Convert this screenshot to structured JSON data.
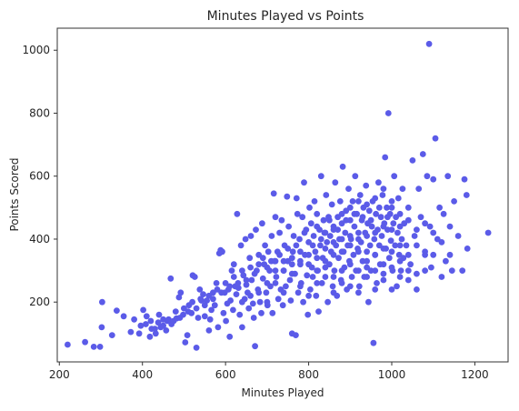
{
  "chart_data": {
    "type": "scatter",
    "title": "Minutes Played vs Points",
    "xlabel": "Minutes Played",
    "ylabel": "Points Scored",
    "xlim": [
      195,
      1280
    ],
    "ylim": [
      10,
      1070
    ],
    "xticks": [
      200,
      400,
      600,
      800,
      1000,
      1200
    ],
    "yticks": [
      200,
      400,
      600,
      800,
      1000
    ],
    "grid": false,
    "point_color": "#5b5be8",
    "points": [
      [
        220,
        65
      ],
      [
        262,
        73
      ],
      [
        283,
        58
      ],
      [
        298,
        58
      ],
      [
        302,
        120
      ],
      [
        303,
        200
      ],
      [
        327,
        95
      ],
      [
        338,
        173
      ],
      [
        355,
        155
      ],
      [
        372,
        105
      ],
      [
        380,
        145
      ],
      [
        392,
        100
      ],
      [
        396,
        125
      ],
      [
        402,
        175
      ],
      [
        408,
        130
      ],
      [
        410,
        155
      ],
      [
        418,
        90
      ],
      [
        422,
        115
      ],
      [
        432,
        100
      ],
      [
        438,
        135
      ],
      [
        444,
        120
      ],
      [
        450,
        145
      ],
      [
        457,
        110
      ],
      [
        463,
        145
      ],
      [
        468,
        275
      ],
      [
        475,
        140
      ],
      [
        482,
        148
      ],
      [
        488,
        215
      ],
      [
        492,
        230
      ],
      [
        498,
        160
      ],
      [
        503,
        72
      ],
      [
        508,
        95
      ],
      [
        512,
        190
      ],
      [
        518,
        165
      ],
      [
        521,
        285
      ],
      [
        526,
        280
      ],
      [
        530,
        55
      ],
      [
        534,
        150
      ],
      [
        538,
        240
      ],
      [
        542,
        205
      ],
      [
        546,
        225
      ],
      [
        550,
        155
      ],
      [
        555,
        205
      ],
      [
        560,
        110
      ],
      [
        563,
        145
      ],
      [
        566,
        175
      ],
      [
        570,
        230
      ],
      [
        574,
        190
      ],
      [
        578,
        260
      ],
      [
        582,
        120
      ],
      [
        585,
        355
      ],
      [
        588,
        365
      ],
      [
        592,
        360
      ],
      [
        595,
        165
      ],
      [
        598,
        230
      ],
      [
        601,
        140
      ],
      [
        604,
        195
      ],
      [
        607,
        240
      ],
      [
        610,
        90
      ],
      [
        612,
        205
      ],
      [
        615,
        300
      ],
      [
        618,
        175
      ],
      [
        620,
        320
      ],
      [
        623,
        250
      ],
      [
        626,
        225
      ],
      [
        628,
        480
      ],
      [
        631,
        245
      ],
      [
        634,
        160
      ],
      [
        637,
        380
      ],
      [
        640,
        120
      ],
      [
        643,
        285
      ],
      [
        646,
        210
      ],
      [
        648,
        400
      ],
      [
        650,
        255
      ],
      [
        653,
        230
      ],
      [
        656,
        180
      ],
      [
        658,
        340
      ],
      [
        661,
        410
      ],
      [
        663,
        270
      ],
      [
        666,
        195
      ],
      [
        668,
        150
      ],
      [
        671,
        60
      ],
      [
        673,
        430
      ],
      [
        675,
        300
      ],
      [
        678,
        240
      ],
      [
        680,
        350
      ],
      [
        683,
        200
      ],
      [
        686,
        165
      ],
      [
        688,
        450
      ],
      [
        690,
        275
      ],
      [
        693,
        320
      ],
      [
        695,
        380
      ],
      [
        698,
        230
      ],
      [
        701,
        190
      ],
      [
        703,
        360
      ],
      [
        706,
        300
      ],
      [
        708,
        250
      ],
      [
        711,
        410
      ],
      [
        713,
        165
      ],
      [
        716,
        545
      ],
      [
        718,
        330
      ],
      [
        720,
        470
      ],
      [
        722,
        280
      ],
      [
        725,
        360
      ],
      [
        727,
        210
      ],
      [
        730,
        420
      ],
      [
        733,
        240
      ],
      [
        735,
        460
      ],
      [
        738,
        190
      ],
      [
        740,
        300
      ],
      [
        742,
        380
      ],
      [
        745,
        250
      ],
      [
        748,
        535
      ],
      [
        750,
        330
      ],
      [
        752,
        440
      ],
      [
        755,
        270
      ],
      [
        757,
        205
      ],
      [
        760,
        100
      ],
      [
        762,
        360
      ],
      [
        764,
        410
      ],
      [
        767,
        290
      ],
      [
        769,
        95
      ],
      [
        771,
        530
      ],
      [
        773,
        480
      ],
      [
        775,
        230
      ],
      [
        778,
        400
      ],
      [
        780,
        320
      ],
      [
        782,
        260
      ],
      [
        785,
        470
      ],
      [
        787,
        200
      ],
      [
        789,
        580
      ],
      [
        791,
        350
      ],
      [
        794,
        430
      ],
      [
        796,
        285
      ],
      [
        798,
        160
      ],
      [
        800,
        390
      ],
      [
        802,
        500
      ],
      [
        804,
        240
      ],
      [
        806,
        450
      ],
      [
        808,
        310
      ],
      [
        810,
        280
      ],
      [
        812,
        410
      ],
      [
        814,
        520
      ],
      [
        816,
        360
      ],
      [
        818,
        220
      ],
      [
        820,
        480
      ],
      [
        822,
        300
      ],
      [
        824,
        170
      ],
      [
        826,
        430
      ],
      [
        828,
        380
      ],
      [
        830,
        600
      ],
      [
        832,
        260
      ],
      [
        834,
        340
      ],
      [
        836,
        460
      ],
      [
        838,
        420
      ],
      [
        840,
        280
      ],
      [
        842,
        540
      ],
      [
        844,
        390
      ],
      [
        846,
        200
      ],
      [
        848,
        470
      ],
      [
        850,
        320
      ],
      [
        852,
        410
      ],
      [
        854,
        360
      ],
      [
        856,
        510
      ],
      [
        858,
        250
      ],
      [
        860,
        440
      ],
      [
        862,
        300
      ],
      [
        864,
        580
      ],
      [
        866,
        380
      ],
      [
        868,
        220
      ],
      [
        870,
        470
      ],
      [
        872,
        340
      ],
      [
        874,
        400
      ],
      [
        876,
        520
      ],
      [
        878,
        270
      ],
      [
        880,
        450
      ],
      [
        882,
        630
      ],
      [
        884,
        360
      ],
      [
        886,
        310
      ],
      [
        888,
        420
      ],
      [
        890,
        490
      ],
      [
        892,
        240
      ],
      [
        894,
        380
      ],
      [
        896,
        560
      ],
      [
        898,
        330
      ],
      [
        900,
        460
      ],
      [
        902,
        400
      ],
      [
        904,
        280
      ],
      [
        906,
        520
      ],
      [
        908,
        350
      ],
      [
        910,
        440
      ],
      [
        912,
        600
      ],
      [
        914,
        300
      ],
      [
        916,
        480
      ],
      [
        918,
        370
      ],
      [
        920,
        420
      ],
      [
        922,
        250
      ],
      [
        924,
        540
      ],
      [
        926,
        390
      ],
      [
        928,
        460
      ],
      [
        930,
        330
      ],
      [
        932,
        500
      ],
      [
        934,
        280
      ],
      [
        936,
        420
      ],
      [
        938,
        570
      ],
      [
        940,
        360
      ],
      [
        942,
        450
      ],
      [
        944,
        200
      ],
      [
        946,
        490
      ],
      [
        948,
        380
      ],
      [
        950,
        300
      ],
      [
        952,
        440
      ],
      [
        954,
        520
      ],
      [
        956,
        70
      ],
      [
        958,
        400
      ],
      [
        960,
        350
      ],
      [
        962,
        480
      ],
      [
        964,
        260
      ],
      [
        966,
        430
      ],
      [
        968,
        580
      ],
      [
        970,
        380
      ],
      [
        972,
        320
      ],
      [
        974,
        470
      ],
      [
        976,
        410
      ],
      [
        978,
        540
      ],
      [
        980,
        290
      ],
      [
        982,
        450
      ],
      [
        984,
        660
      ],
      [
        986,
        370
      ],
      [
        988,
        500
      ],
      [
        990,
        430
      ],
      [
        992,
        800
      ],
      [
        994,
        340
      ],
      [
        996,
        480
      ],
      [
        998,
        395
      ],
      [
        1000,
        520
      ],
      [
        1002,
        300
      ],
      [
        1004,
        450
      ],
      [
        1006,
        600
      ],
      [
        1008,
        380
      ],
      [
        1010,
        470
      ],
      [
        1012,
        250
      ],
      [
        1014,
        420
      ],
      [
        1016,
        530
      ],
      [
        1018,
        350
      ],
      [
        1020,
        480
      ],
      [
        1022,
        300
      ],
      [
        1024,
        400
      ],
      [
        1026,
        560
      ],
      [
        1028,
        340
      ],
      [
        1030,
        450
      ],
      [
        1035,
        380
      ],
      [
        1040,
        500
      ],
      [
        1045,
        320
      ],
      [
        1050,
        650
      ],
      [
        1055,
        410
      ],
      [
        1060,
        290
      ],
      [
        1065,
        560
      ],
      [
        1070,
        470
      ],
      [
        1075,
        670
      ],
      [
        1080,
        350
      ],
      [
        1085,
        600
      ],
      [
        1090,
        1020
      ],
      [
        1092,
        440
      ],
      [
        1095,
        310
      ],
      [
        1100,
        590
      ],
      [
        1105,
        720
      ],
      [
        1110,
        400
      ],
      [
        1115,
        500
      ],
      [
        1120,
        280
      ],
      [
        1125,
        480
      ],
      [
        1130,
        330
      ],
      [
        1135,
        600
      ],
      [
        1140,
        440
      ],
      [
        1145,
        300
      ],
      [
        1150,
        520
      ],
      [
        1160,
        410
      ],
      [
        1170,
        300
      ],
      [
        1175,
        590
      ],
      [
        1180,
        540
      ],
      [
        1182,
        370
      ],
      [
        1232,
        420
      ],
      [
        700,
        200
      ],
      [
        720,
        260
      ],
      [
        740,
        230
      ],
      [
        760,
        290
      ],
      [
        780,
        250
      ],
      [
        800,
        220
      ],
      [
        820,
        260
      ],
      [
        840,
        310
      ],
      [
        860,
        230
      ],
      [
        880,
        260
      ],
      [
        900,
        250
      ],
      [
        920,
        230
      ],
      [
        940,
        280
      ],
      [
        960,
        240
      ],
      [
        980,
        270
      ],
      [
        1000,
        240
      ],
      [
        1020,
        280
      ],
      [
        1040,
        300
      ],
      [
        1060,
        240
      ],
      [
        1080,
        300
      ],
      [
        640,
        200
      ],
      [
        660,
        220
      ],
      [
        680,
        230
      ],
      [
        700,
        260
      ],
      [
        720,
        300
      ],
      [
        740,
        330
      ],
      [
        760,
        340
      ],
      [
        780,
        360
      ],
      [
        800,
        350
      ],
      [
        820,
        340
      ],
      [
        840,
        370
      ],
      [
        860,
        390
      ],
      [
        880,
        400
      ],
      [
        900,
        410
      ],
      [
        920,
        400
      ],
      [
        940,
        410
      ],
      [
        960,
        420
      ],
      [
        980,
        440
      ],
      [
        1000,
        430
      ],
      [
        1020,
        440
      ],
      [
        1040,
        460
      ],
      [
        1060,
        430
      ],
      [
        1080,
        450
      ],
      [
        1100,
        420
      ],
      [
        870,
        430
      ],
      [
        890,
        460
      ],
      [
        910,
        480
      ],
      [
        930,
        470
      ],
      [
        950,
        460
      ],
      [
        970,
        500
      ],
      [
        990,
        470
      ],
      [
        850,
        460
      ],
      [
        830,
        400
      ],
      [
        810,
        380
      ],
      [
        790,
        420
      ],
      [
        770,
        380
      ],
      [
        750,
        370
      ],
      [
        730,
        350
      ],
      [
        710,
        330
      ],
      [
        690,
        340
      ],
      [
        670,
        290
      ],
      [
        650,
        270
      ],
      [
        630,
        260
      ],
      [
        610,
        250
      ],
      [
        590,
        230
      ],
      [
        570,
        210
      ],
      [
        550,
        190
      ],
      [
        530,
        180
      ],
      [
        510,
        170
      ],
      [
        490,
        150
      ],
      [
        470,
        130
      ],
      [
        450,
        125
      ],
      [
        430,
        115
      ],
      [
        420,
        140
      ],
      [
        440,
        160
      ],
      [
        460,
        140
      ],
      [
        480,
        170
      ],
      [
        500,
        180
      ],
      [
        520,
        200
      ],
      [
        540,
        210
      ],
      [
        560,
        220
      ],
      [
        580,
        240
      ],
      [
        600,
        260
      ],
      [
        620,
        280
      ],
      [
        640,
        300
      ],
      [
        660,
        310
      ],
      [
        680,
        320
      ],
      [
        700,
        310
      ],
      [
        720,
        330
      ],
      [
        740,
        300
      ],
      [
        760,
        320
      ],
      [
        780,
        330
      ],
      [
        800,
        320
      ],
      [
        820,
        300
      ],
      [
        840,
        330
      ],
      [
        860,
        350
      ],
      [
        880,
        360
      ],
      [
        900,
        380
      ],
      [
        920,
        360
      ],
      [
        940,
        330
      ],
      [
        960,
        350
      ],
      [
        980,
        370
      ],
      [
        1000,
        360
      ],
      [
        1020,
        380
      ],
      [
        1040,
        350
      ],
      [
        1060,
        380
      ],
      [
        1080,
        360
      ],
      [
        1100,
        350
      ],
      [
        1120,
        390
      ],
      [
        1140,
        350
      ],
      [
        860,
        280
      ],
      [
        880,
        300
      ],
      [
        900,
        320
      ],
      [
        920,
        300
      ],
      [
        940,
        310
      ],
      [
        960,
        300
      ],
      [
        980,
        320
      ],
      [
        1000,
        310
      ],
      [
        1020,
        330
      ],
      [
        1040,
        270
      ],
      [
        820,
        440
      ],
      [
        840,
        420
      ],
      [
        860,
        430
      ],
      [
        880,
        480
      ],
      [
        900,
        500
      ],
      [
        920,
        520
      ],
      [
        940,
        510
      ],
      [
        960,
        530
      ],
      [
        980,
        560
      ],
      [
        1000,
        500
      ]
    ]
  }
}
